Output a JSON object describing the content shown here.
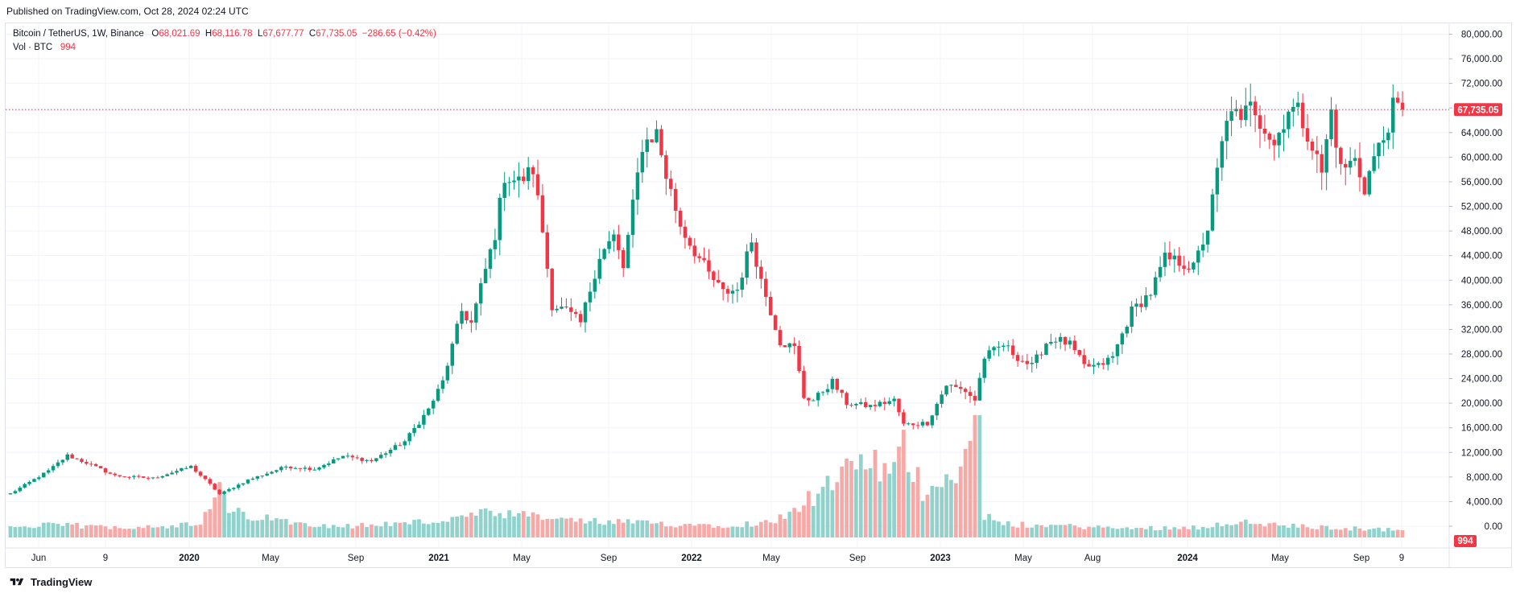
{
  "header": {
    "published": "Published on TradingView.com, Oct 28, 2024 02:24 UTC"
  },
  "legend": {
    "symbol": "Bitcoin / TetherUS, 1W, Binance",
    "o_label": "O",
    "o_value": "68,021.69",
    "h_label": "H",
    "h_value": "68,116.78",
    "l_label": "L",
    "l_value": "67,677.77",
    "c_label": "C",
    "c_value": "67,735.05",
    "change": "−286.65 (−0.42%)",
    "vol_label": "Vol · BTC",
    "vol_value": "994"
  },
  "footer": {
    "brand": "TradingView"
  },
  "colors": {
    "up": "#089981",
    "down": "#f23645",
    "up_vol": "#92d2cc",
    "down_vol": "#f7a9a7",
    "grid": "#f0f3fa",
    "axis_text": "#131722"
  },
  "chart_data": {
    "type": "candlestick",
    "symbol": "BTCUSDT",
    "timeframe": "1W",
    "price_axis": {
      "ticks": [
        "80,000.00",
        "76,000.00",
        "72,000.00",
        "68,000.00",
        "64,000.00",
        "60,000.00",
        "56,000.00",
        "52,000.00",
        "48,000.00",
        "44,000.00",
        "40,000.00",
        "36,000.00",
        "32,000.00",
        "28,000.00",
        "24,000.00",
        "20,000.00",
        "16,000.00",
        "12,000.00",
        "8,000.00",
        "4,000.00",
        "0.00"
      ],
      "ylim": [
        0,
        80000
      ]
    },
    "last_price_label": "67,735.05",
    "last_price": 67735.05,
    "volume_label": "994",
    "time_axis_labels": [
      "Jun",
      "9",
      "2020",
      "May",
      "Sep",
      "2021",
      "May",
      "Sep",
      "2022",
      "May",
      "Sep",
      "2023",
      "May",
      "Aug",
      "2024",
      "May",
      "Sep",
      "9"
    ],
    "time_axis_bold": [
      "2020",
      "2021",
      "2022",
      "2023",
      "2024"
    ],
    "anchors": [
      {
        "i": 0,
        "p": 5300
      },
      {
        "i": 8,
        "p": 9000
      },
      {
        "i": 12,
        "p": 11500
      },
      {
        "i": 16,
        "p": 10300
      },
      {
        "i": 22,
        "p": 8200
      },
      {
        "i": 30,
        "p": 7800
      },
      {
        "i": 38,
        "p": 9700
      },
      {
        "i": 42,
        "p": 6800
      },
      {
        "i": 44,
        "p": 5200
      },
      {
        "i": 50,
        "p": 7500
      },
      {
        "i": 58,
        "p": 9700
      },
      {
        "i": 64,
        "p": 9300
      },
      {
        "i": 70,
        "p": 11400
      },
      {
        "i": 76,
        "p": 10600
      },
      {
        "i": 83,
        "p": 13800
      },
      {
        "i": 88,
        "p": 19000
      },
      {
        "i": 91,
        "p": 23500
      },
      {
        "i": 95,
        "p": 35000
      },
      {
        "i": 97,
        "p": 33000
      },
      {
        "i": 102,
        "p": 47500
      },
      {
        "i": 104,
        "p": 57000
      },
      {
        "i": 107,
        "p": 56000
      },
      {
        "i": 110,
        "p": 58000
      },
      {
        "i": 112,
        "p": 48000
      },
      {
        "i": 114,
        "p": 36000
      },
      {
        "i": 117,
        "p": 35000
      },
      {
        "i": 120,
        "p": 33000
      },
      {
        "i": 124,
        "p": 44000
      },
      {
        "i": 127,
        "p": 47000
      },
      {
        "i": 129,
        "p": 42000
      },
      {
        "i": 133,
        "p": 62000
      },
      {
        "i": 136,
        "p": 64000
      },
      {
        "i": 138,
        "p": 57000
      },
      {
        "i": 141,
        "p": 49000
      },
      {
        "i": 143,
        "p": 46000
      },
      {
        "i": 147,
        "p": 41000
      },
      {
        "i": 150,
        "p": 38000
      },
      {
        "i": 153,
        "p": 38500
      },
      {
        "i": 156,
        "p": 46500
      },
      {
        "i": 158,
        "p": 40000
      },
      {
        "i": 162,
        "p": 30000
      },
      {
        "i": 165,
        "p": 29000
      },
      {
        "i": 167,
        "p": 21000
      },
      {
        "i": 169,
        "p": 20500
      },
      {
        "i": 173,
        "p": 23500
      },
      {
        "i": 176,
        "p": 20000
      },
      {
        "i": 181,
        "p": 19500
      },
      {
        "i": 186,
        "p": 20500
      },
      {
        "i": 188,
        "p": 16500
      },
      {
        "i": 193,
        "p": 16800
      },
      {
        "i": 197,
        "p": 23000
      },
      {
        "i": 201,
        "p": 22000
      },
      {
        "i": 203,
        "p": 20500
      },
      {
        "i": 205,
        "p": 27500
      },
      {
        "i": 209,
        "p": 29500
      },
      {
        "i": 212,
        "p": 27500
      },
      {
        "i": 215,
        "p": 26000
      },
      {
        "i": 218,
        "p": 29800
      },
      {
        "i": 220,
        "p": 30500
      },
      {
        "i": 223,
        "p": 29500
      },
      {
        "i": 226,
        "p": 26000
      },
      {
        "i": 229,
        "p": 26000
      },
      {
        "i": 232,
        "p": 27500
      },
      {
        "i": 236,
        "p": 35000
      },
      {
        "i": 240,
        "p": 38000
      },
      {
        "i": 243,
        "p": 43500
      },
      {
        "i": 246,
        "p": 43000
      },
      {
        "i": 249,
        "p": 42000
      },
      {
        "i": 252,
        "p": 48500
      },
      {
        "i": 255,
        "p": 62000
      },
      {
        "i": 257,
        "p": 68500
      },
      {
        "i": 259,
        "p": 65000
      },
      {
        "i": 261,
        "p": 70000
      },
      {
        "i": 263,
        "p": 66000
      },
      {
        "i": 266,
        "p": 62000
      },
      {
        "i": 269,
        "p": 68000
      },
      {
        "i": 271,
        "p": 67500
      },
      {
        "i": 273,
        "p": 64000
      },
      {
        "i": 276,
        "p": 57500
      },
      {
        "i": 278,
        "p": 67500
      },
      {
        "i": 280,
        "p": 58000
      },
      {
        "i": 283,
        "p": 59500
      },
      {
        "i": 285,
        "p": 55000
      },
      {
        "i": 287,
        "p": 60000
      },
      {
        "i": 289,
        "p": 63000
      },
      {
        "i": 291,
        "p": 68000
      },
      {
        "i": 293,
        "p": 67735
      }
    ],
    "volume_profile": [
      {
        "i": 0,
        "v": 1400
      },
      {
        "i": 10,
        "v": 1700
      },
      {
        "i": 20,
        "v": 1400
      },
      {
        "i": 40,
        "v": 1700
      },
      {
        "i": 44,
        "v": 6500
      },
      {
        "i": 46,
        "v": 3500
      },
      {
        "i": 55,
        "v": 2400
      },
      {
        "i": 70,
        "v": 1500
      },
      {
        "i": 90,
        "v": 2200
      },
      {
        "i": 100,
        "v": 3200
      },
      {
        "i": 110,
        "v": 2800
      },
      {
        "i": 120,
        "v": 2200
      },
      {
        "i": 130,
        "v": 2000
      },
      {
        "i": 140,
        "v": 1800
      },
      {
        "i": 150,
        "v": 1700
      },
      {
        "i": 160,
        "v": 2000
      },
      {
        "i": 165,
        "v": 4000
      },
      {
        "i": 170,
        "v": 6000
      },
      {
        "i": 175,
        "v": 8000
      },
      {
        "i": 180,
        "v": 11000
      },
      {
        "i": 185,
        "v": 8000
      },
      {
        "i": 188,
        "v": 12000
      },
      {
        "i": 192,
        "v": 6500
      },
      {
        "i": 197,
        "v": 8500
      },
      {
        "i": 201,
        "v": 10500
      },
      {
        "i": 204,
        "v": 16500
      },
      {
        "i": 205,
        "v": 3000
      },
      {
        "i": 208,
        "v": 1800
      },
      {
        "i": 220,
        "v": 1600
      },
      {
        "i": 235,
        "v": 1200
      },
      {
        "i": 250,
        "v": 1400
      },
      {
        "i": 257,
        "v": 2100
      },
      {
        "i": 270,
        "v": 1500
      },
      {
        "i": 293,
        "v": 994
      }
    ],
    "bar_count": 294
  }
}
